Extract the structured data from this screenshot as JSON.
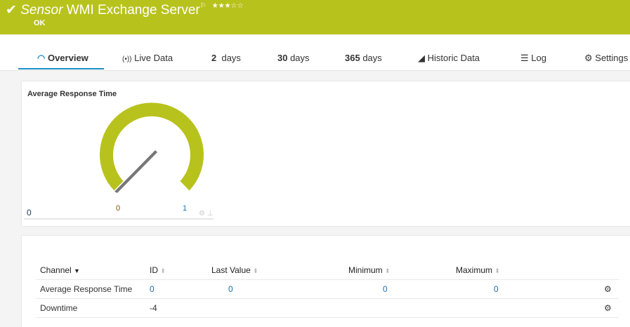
{
  "header": {
    "sensor_prefix": "Sensor",
    "title": "WMI Exchange Server",
    "status": "OK",
    "stars": "★★★☆☆",
    "accent": "#b8c21c"
  },
  "tabs": [
    {
      "label": "Overview",
      "icon": "gauge-icon"
    },
    {
      "label": "Live Data",
      "icon": "broadcast-icon"
    },
    {
      "label": "2  days"
    },
    {
      "label": "30  days"
    },
    {
      "label": "365  days"
    },
    {
      "label": "Historic Data",
      "icon": "area-chart-icon"
    },
    {
      "label": "Log",
      "icon": "list-icon"
    },
    {
      "label": "Settings",
      "icon": "gear-icon"
    }
  ],
  "gauge": {
    "title": "Average Response Time",
    "min_label": "0",
    "value_label": "0",
    "max_label": "1",
    "left_label": "0"
  },
  "table": {
    "headers": [
      "Channel",
      "ID",
      "Last Value",
      "Minimum",
      "Maximum"
    ],
    "rows": [
      {
        "channel": "Average Response Time",
        "id": "0",
        "last": "0",
        "min": "0",
        "max": "0"
      },
      {
        "channel": "Downtime",
        "id": "-4",
        "last": "",
        "min": "",
        "max": ""
      }
    ]
  }
}
